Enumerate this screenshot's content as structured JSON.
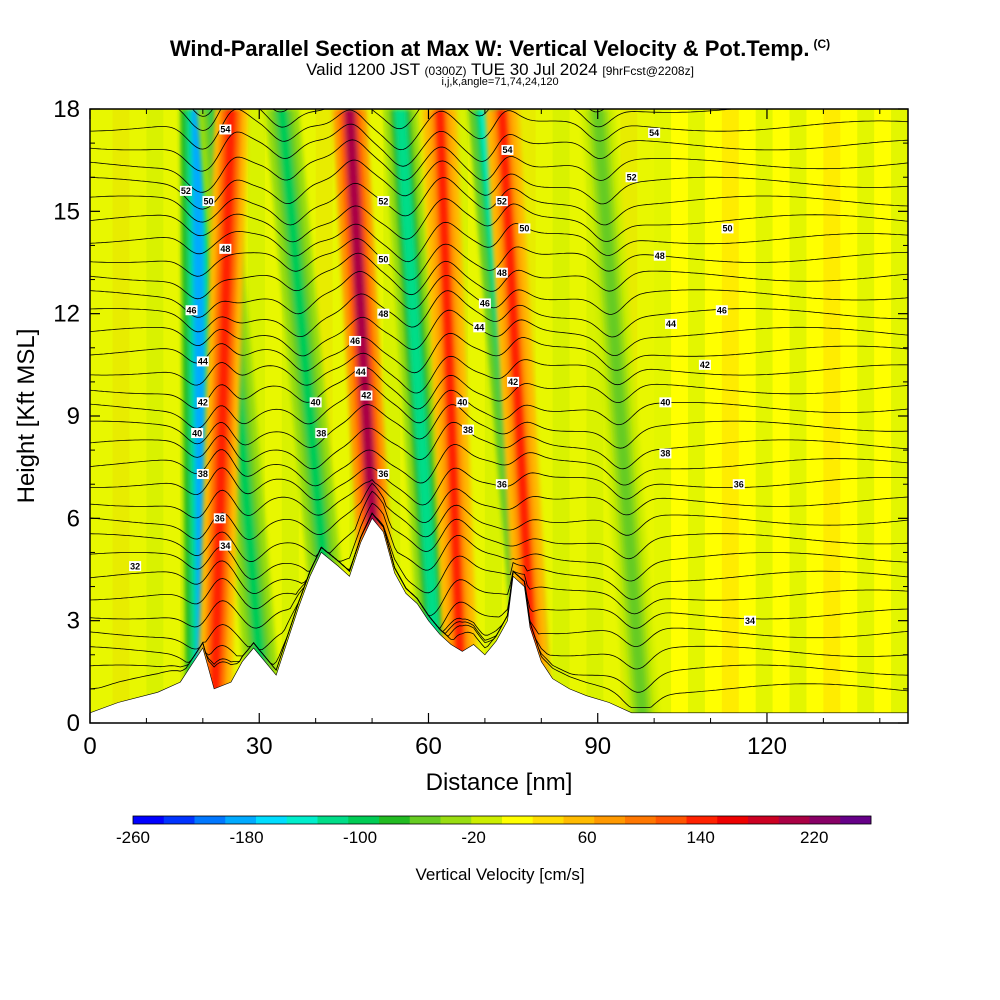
{
  "header": {
    "title": "Wind-Parallel Section at Max W: Vertical Velocity & Pot.Temp.",
    "copyright": "(C)",
    "valid_prefix": "Valid 1200 JST",
    "valid_zulu": "(0300Z)",
    "valid_date": "TUE 30 Jul 2024",
    "forecast": "[9hrFcst@2208z]",
    "indices": "i,j,k,angle=71,74,24,120"
  },
  "chart_data": {
    "type": "heatmap",
    "xlabel": "Distance [nm]",
    "ylabel": "Height [Kft MSL]",
    "xlim": [
      0,
      145
    ],
    "ylim": [
      0,
      18
    ],
    "x_ticks": [
      0,
      30,
      60,
      90,
      120
    ],
    "y_ticks": [
      0,
      3,
      6,
      9,
      12,
      15,
      18
    ],
    "colorbar": {
      "label": "Vertical Velocity [cm/s]",
      "range": [
        -260,
        260
      ],
      "tick_values": [
        -260,
        -180,
        -100,
        -20,
        60,
        140,
        220
      ],
      "colors": [
        "#0000ff",
        "#0033ff",
        "#0077ff",
        "#00aaff",
        "#00ddff",
        "#00eecc",
        "#00dd88",
        "#00cc55",
        "#22bb22",
        "#66cc22",
        "#99dd11",
        "#ccee00",
        "#ffff00",
        "#ffdd00",
        "#ffbb00",
        "#ff9900",
        "#ff7700",
        "#ff5500",
        "#ff2200",
        "#ee0000",
        "#cc0022",
        "#aa0044",
        "#880066",
        "#660088"
      ]
    },
    "terrain": [
      [
        0,
        0.3
      ],
      [
        5,
        0.6
      ],
      [
        12,
        0.9
      ],
      [
        16,
        1.2
      ],
      [
        18,
        1.7
      ],
      [
        20,
        2.2
      ],
      [
        21,
        1.6
      ],
      [
        22,
        1.0
      ],
      [
        25,
        1.2
      ],
      [
        27,
        1.8
      ],
      [
        29,
        2.2
      ],
      [
        31,
        1.8
      ],
      [
        33,
        1.4
      ],
      [
        35,
        2.4
      ],
      [
        37,
        3.4
      ],
      [
        39,
        4.3
      ],
      [
        41,
        5.0
      ],
      [
        44,
        4.6
      ],
      [
        46,
        4.3
      ],
      [
        48,
        5.3
      ],
      [
        50,
        6.0
      ],
      [
        52,
        5.6
      ],
      [
        54,
        4.4
      ],
      [
        56,
        3.8
      ],
      [
        58,
        3.5
      ],
      [
        60,
        3.0
      ],
      [
        62,
        2.6
      ],
      [
        64,
        2.3
      ],
      [
        66,
        2.1
      ],
      [
        68,
        2.3
      ],
      [
        70,
        2.0
      ],
      [
        72,
        2.4
      ],
      [
        74,
        3.0
      ],
      [
        75,
        4.3
      ],
      [
        77,
        4.0
      ],
      [
        78,
        2.8
      ],
      [
        80,
        1.8
      ],
      [
        82,
        1.3
      ],
      [
        85,
        1.0
      ],
      [
        88,
        0.8
      ],
      [
        92,
        0.6
      ],
      [
        96,
        0.3
      ],
      [
        145,
        0.3
      ]
    ],
    "updrafts": [
      {
        "x_base": 22,
        "x_top": 25,
        "w": 150
      },
      {
        "x_base": 52,
        "x_top": 46,
        "w": 200
      },
      {
        "x_base": 66,
        "x_top": 62,
        "w": 140
      },
      {
        "x_base": 79,
        "x_top": 73,
        "w": 130
      }
    ],
    "downdrafts": [
      {
        "x_base": 20,
        "x_top": 19,
        "w": -190
      },
      {
        "x_base": 31,
        "x_top": 22,
        "w": -90
      },
      {
        "x_base": 44,
        "x_top": 34,
        "w": -100
      },
      {
        "x_base": 62,
        "x_top": 55,
        "w": -110
      },
      {
        "x_base": 79,
        "x_top": 70,
        "w": -150
      },
      {
        "x_base": 98,
        "x_top": 90,
        "w": -50
      }
    ],
    "theta_contour_labels": [
      {
        "x": 8,
        "y": 4.6,
        "v": "32"
      },
      {
        "x": 24,
        "y": 5.2,
        "v": "34"
      },
      {
        "x": 23,
        "y": 6.0,
        "v": "36"
      },
      {
        "x": 20,
        "y": 7.3,
        "v": "38"
      },
      {
        "x": 19,
        "y": 8.5,
        "v": "40"
      },
      {
        "x": 20,
        "y": 9.4,
        "v": "42"
      },
      {
        "x": 20,
        "y": 10.6,
        "v": "44"
      },
      {
        "x": 18,
        "y": 12.1,
        "v": "46"
      },
      {
        "x": 24,
        "y": 13.9,
        "v": "48"
      },
      {
        "x": 21,
        "y": 15.3,
        "v": "50"
      },
      {
        "x": 17,
        "y": 15.6,
        "v": "52"
      },
      {
        "x": 24,
        "y": 17.4,
        "v": "54"
      },
      {
        "x": 41,
        "y": 8.5,
        "v": "38"
      },
      {
        "x": 40,
        "y": 9.4,
        "v": "40"
      },
      {
        "x": 49,
        "y": 9.6,
        "v": "42"
      },
      {
        "x": 48,
        "y": 10.3,
        "v": "44"
      },
      {
        "x": 47,
        "y": 11.2,
        "v": "46"
      },
      {
        "x": 52,
        "y": 12.0,
        "v": "48"
      },
      {
        "x": 52,
        "y": 13.6,
        "v": "50"
      },
      {
        "x": 52,
        "y": 15.3,
        "v": "52"
      },
      {
        "x": 52,
        "y": 7.3,
        "v": "36"
      },
      {
        "x": 67,
        "y": 8.6,
        "v": "38"
      },
      {
        "x": 66,
        "y": 9.4,
        "v": "40"
      },
      {
        "x": 73,
        "y": 7.0,
        "v": "36"
      },
      {
        "x": 75,
        "y": 10.0,
        "v": "42"
      },
      {
        "x": 69,
        "y": 11.6,
        "v": "44"
      },
      {
        "x": 70,
        "y": 12.3,
        "v": "46"
      },
      {
        "x": 73,
        "y": 13.2,
        "v": "48"
      },
      {
        "x": 77,
        "y": 14.5,
        "v": "50"
      },
      {
        "x": 73,
        "y": 15.3,
        "v": "52"
      },
      {
        "x": 74,
        "y": 16.8,
        "v": "54"
      },
      {
        "x": 115,
        "y": 7.0,
        "v": "36"
      },
      {
        "x": 102,
        "y": 7.9,
        "v": "38"
      },
      {
        "x": 102,
        "y": 9.4,
        "v": "40"
      },
      {
        "x": 109,
        "y": 10.5,
        "v": "42"
      },
      {
        "x": 103,
        "y": 11.7,
        "v": "44"
      },
      {
        "x": 112,
        "y": 12.1,
        "v": "46"
      },
      {
        "x": 101,
        "y": 13.7,
        "v": "48"
      },
      {
        "x": 113,
        "y": 14.5,
        "v": "50"
      },
      {
        "x": 96,
        "y": 16.0,
        "v": "52"
      },
      {
        "x": 100,
        "y": 17.3,
        "v": "54"
      },
      {
        "x": 117,
        "y": 3.0,
        "v": "34"
      }
    ]
  }
}
